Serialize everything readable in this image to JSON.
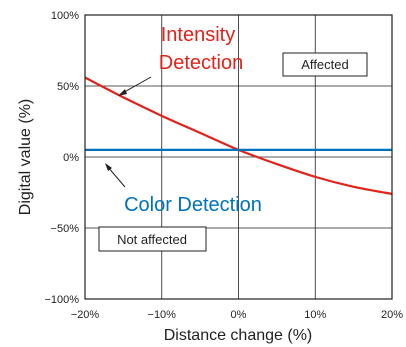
{
  "chart_data": {
    "type": "line",
    "xlabel": "Distance change (%)",
    "ylabel": "Digital value (%)",
    "xlim": [
      -20,
      20
    ],
    "ylim": [
      -100,
      100
    ],
    "x_ticks": [
      "−20%",
      "−10%",
      "0%",
      "10%",
      "20%"
    ],
    "y_ticks": [
      "100%",
      "50%",
      "0%",
      "−50%",
      "−100%"
    ],
    "grid": true,
    "series": [
      {
        "color": "#e2231a",
        "x": [
          -20,
          -15,
          -10,
          -5,
          0,
          5,
          10,
          15,
          20
        ],
        "y": [
          56,
          42,
          29,
          17,
          5,
          -5,
          -14,
          -21,
          -26
        ]
      },
      {
        "color": "#0072bc",
        "x": [
          -20,
          -10,
          0,
          10,
          20
        ],
        "y": [
          5,
          5,
          5,
          5,
          5
        ]
      }
    ],
    "annotations": {
      "intensity_line1": "Intensity",
      "intensity_line2": "Detection",
      "intensity_color": "#e2231a",
      "color_detection": "Color Detection",
      "color_detection_color": "#0072bc",
      "affected": "Affected",
      "not_affected": "Not affected"
    }
  }
}
